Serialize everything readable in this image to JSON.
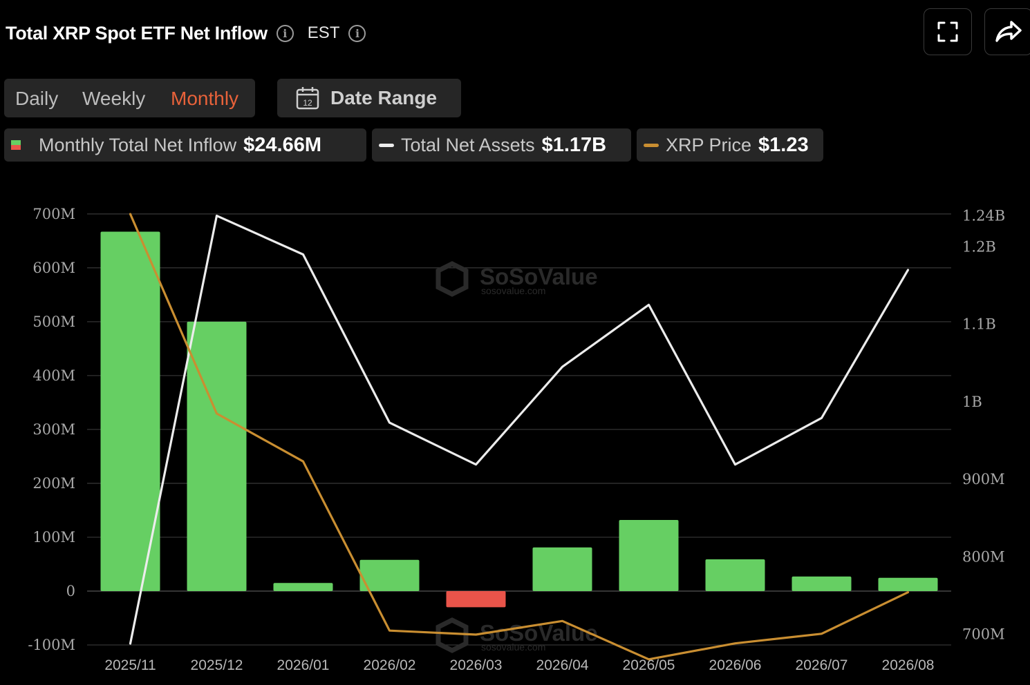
{
  "header": {
    "title": "Total XRP Spot ETF Net Inflow",
    "timezone": "EST"
  },
  "toolbar": {
    "periods": [
      "Daily",
      "Weekly",
      "Monthly"
    ],
    "active_period": "Monthly",
    "date_range_label": "Date Range",
    "date_range_icon_text": "12"
  },
  "legend": {
    "inflow": {
      "label": "Monthly Total Net Inflow",
      "value": "$24.66M"
    },
    "assets": {
      "label": "Total Net Assets",
      "value": "$1.17B"
    },
    "price": {
      "label": "XRP Price",
      "value": "$1.23"
    }
  },
  "watermark": {
    "brand": "SoSoValue",
    "site": "sosovalue.com"
  },
  "colors": {
    "positive": "#66cf63",
    "negative": "#e9544a",
    "assets_line": "#ececec",
    "price_line": "#c98e31",
    "accent": "#e8623a",
    "chip_bg": "#262626",
    "grid": "#333333"
  },
  "chart_data": {
    "type": "bar",
    "categories": [
      "2025/11",
      "2025/12",
      "2026/01",
      "2026/02",
      "2026/03",
      "2026/04",
      "2026/05",
      "2026/06",
      "2026/07",
      "2026/08"
    ],
    "left_axis": {
      "ticks": [
        -100,
        0,
        100,
        200,
        300,
        400,
        500,
        600,
        700
      ],
      "tick_labels": [
        "-100M",
        "0",
        "100M",
        "200M",
        "300M",
        "400M",
        "500M",
        "600M",
        "700M"
      ],
      "ylim": [
        -100,
        700
      ],
      "unit": "M"
    },
    "right_axis": {
      "ticks": [
        700,
        800,
        900,
        1000,
        1100,
        1200,
        1240
      ],
      "tick_labels": [
        "700M",
        "800M",
        "900M",
        "1B",
        "1.1B",
        "1.2B",
        "1.24B"
      ],
      "ylim": [
        690,
        1240
      ],
      "unit": "M"
    },
    "series": [
      {
        "name": "Monthly Total Net Inflow",
        "kind": "bar",
        "axis": "left",
        "values": [
          667,
          500,
          15,
          58,
          -30,
          81,
          132,
          59,
          27,
          24.66
        ]
      },
      {
        "name": "Total Net Assets",
        "kind": "line",
        "axis": "right",
        "values": [
          688,
          1240,
          1190,
          973,
          919,
          1045,
          1125,
          919,
          979,
          1170
        ]
      },
      {
        "name": "XRP Price",
        "kind": "line",
        "axis": "price",
        "ylim": [
          0.9,
          3.6
        ],
        "values": [
          3.6,
          2.35,
          2.05,
          0.99,
          0.965,
          1.05,
          0.81,
          0.91,
          0.97,
          1.23
        ]
      }
    ],
    "grid": true,
    "legend_placement": "top-left"
  }
}
